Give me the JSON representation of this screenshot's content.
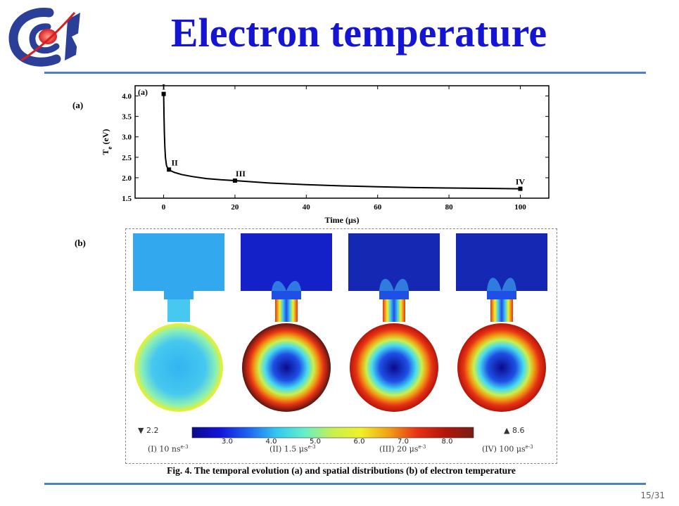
{
  "slide": {
    "title": "Electron temperature",
    "slide_number": "15/31",
    "caption": "Fig. 4.  The temporal evolution (a) and spatial distributions (b) of electron temperature",
    "panel_a_label": "(a)",
    "panel_b_label": "(b)"
  },
  "chart_data": {
    "type": "line",
    "inner_label": "(a)",
    "xlabel": "Time  (μs)",
    "ylabel": "T",
    "ylabel_sub": "e",
    "ylabel_unit": " (eV)",
    "xlim": [
      -8,
      108
    ],
    "ylim": [
      1.5,
      4.25
    ],
    "xticks": [
      0,
      20,
      40,
      60,
      80,
      100
    ],
    "yticks": [
      1.5,
      2.0,
      2.5,
      3.0,
      3.5,
      4.0
    ],
    "ytick_labels": [
      "1.5",
      "2.0",
      "2.5",
      "3.0",
      "3.5",
      "4.0"
    ],
    "curve": {
      "x": [
        0.01,
        0.1,
        0.2,
        0.35,
        0.5,
        0.8,
        1.2,
        1.5,
        2,
        3,
        5,
        8,
        12,
        16,
        20,
        30,
        40,
        50,
        60,
        70,
        80,
        90,
        100
      ],
      "y": [
        4.05,
        3.5,
        3.1,
        2.75,
        2.5,
        2.3,
        2.22,
        2.2,
        2.17,
        2.13,
        2.08,
        2.03,
        1.98,
        1.95,
        1.93,
        1.87,
        1.83,
        1.8,
        1.78,
        1.76,
        1.75,
        1.74,
        1.73
      ]
    },
    "markers": [
      {
        "x": 0.01,
        "y": 4.05,
        "label": "I"
      },
      {
        "x": 1.5,
        "y": 2.2,
        "label": "II"
      },
      {
        "x": 20,
        "y": 1.93,
        "label": "III"
      },
      {
        "x": 100,
        "y": 1.73,
        "label": "IV"
      }
    ]
  },
  "maps": [
    {
      "label": "(I) 10 ns",
      "ref": "e-3"
    },
    {
      "label": "(II) 1.5 μs",
      "ref": "e-3"
    },
    {
      "label": "(III) 20 μs",
      "ref": "e-3"
    },
    {
      "label": "(IV) 100 μs",
      "ref": "e-3"
    }
  ],
  "colorbar": {
    "min_label": "▼ 2.2",
    "max_label": "▲ 8.6",
    "min": 2.2,
    "max": 8.6,
    "ticks": [
      "3.0",
      "4.0",
      "5.0",
      "6.0",
      "7.0",
      "8.0"
    ],
    "tick_values": [
      3.0,
      4.0,
      5.0,
      6.0,
      7.0,
      8.0
    ],
    "colors": [
      "#0a0a8c",
      "#1414dc",
      "#1e64f0",
      "#32c8f0",
      "#64f0c8",
      "#c8f050",
      "#f0f028",
      "#f0a014",
      "#e63214",
      "#b4140a",
      "#781e14"
    ]
  },
  "colors": {
    "title": "#1414d2",
    "rule": "#4f7fbf"
  }
}
